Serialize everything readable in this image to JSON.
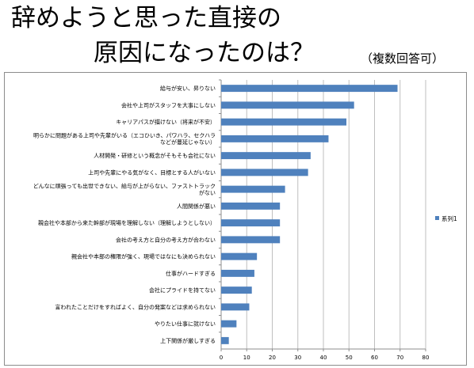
{
  "slide": {
    "title_line1": "辞めようと思った直接の",
    "title_line2": "原因になったのは？",
    "subtitle": "（複数回答可）"
  },
  "chart_data": {
    "type": "bar",
    "orientation": "horizontal",
    "categories": [
      "給与が安い、昇りない",
      "会社や上司がスタッフを大事にしない",
      "キャリアパスが描けない（将来が不安）",
      "明らかに問題がある上司や先輩がいる（エコひいき、パワハラ、セクハラなどが蔓延じゃない）",
      "人材開発・研修という概念がそもそも会社にない",
      "上司や先輩にやる気がなく、目標とする人がいない",
      "どんなに頑張っても出世できない、給与が上がらない、ファストトラックがない",
      "人間関係が悪い",
      "親会社や本部から来た幹部が現場を理解しない（理解しようとしない）",
      "会社の考え方と自分の考え方が合わない",
      "親会社や本部の権限が強く、現場ではなにも決められない",
      "仕事がハードすぎる",
      "会社にプライドを持てない",
      "言われたことだけをすればよく、自分の発案などは求められない",
      "やりたい仕事に就けない",
      "上下関係が厳しすぎる"
    ],
    "series": [
      {
        "name": "系列1",
        "values": [
          69,
          52,
          49,
          42,
          35,
          34,
          25,
          23,
          23,
          23,
          14,
          13,
          12,
          11,
          6,
          3
        ]
      }
    ],
    "xlim": [
      0,
      80
    ],
    "xticks": [
      0,
      10,
      20,
      30,
      40,
      50,
      60,
      70,
      80
    ],
    "grid": true,
    "legend": "right",
    "bar_color": "#4f81bd"
  }
}
